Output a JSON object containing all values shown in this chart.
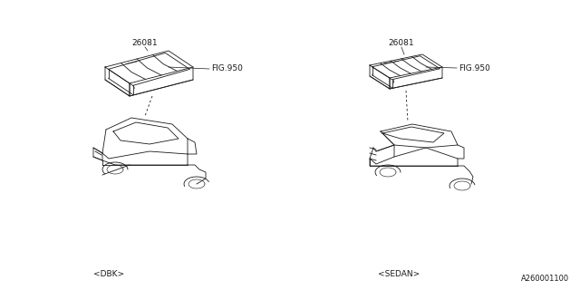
{
  "bg_color": "#ffffff",
  "line_color": "#1a1a1a",
  "part_number": "26081",
  "fig_ref": "FIG.950",
  "label_dbk": "<DBK>",
  "label_sedan": "<SEDAN>",
  "doc_number": "A260001100",
  "small_fontsize": 6.5,
  "label_fontsize": 6.5,
  "doc_fontsize": 6
}
